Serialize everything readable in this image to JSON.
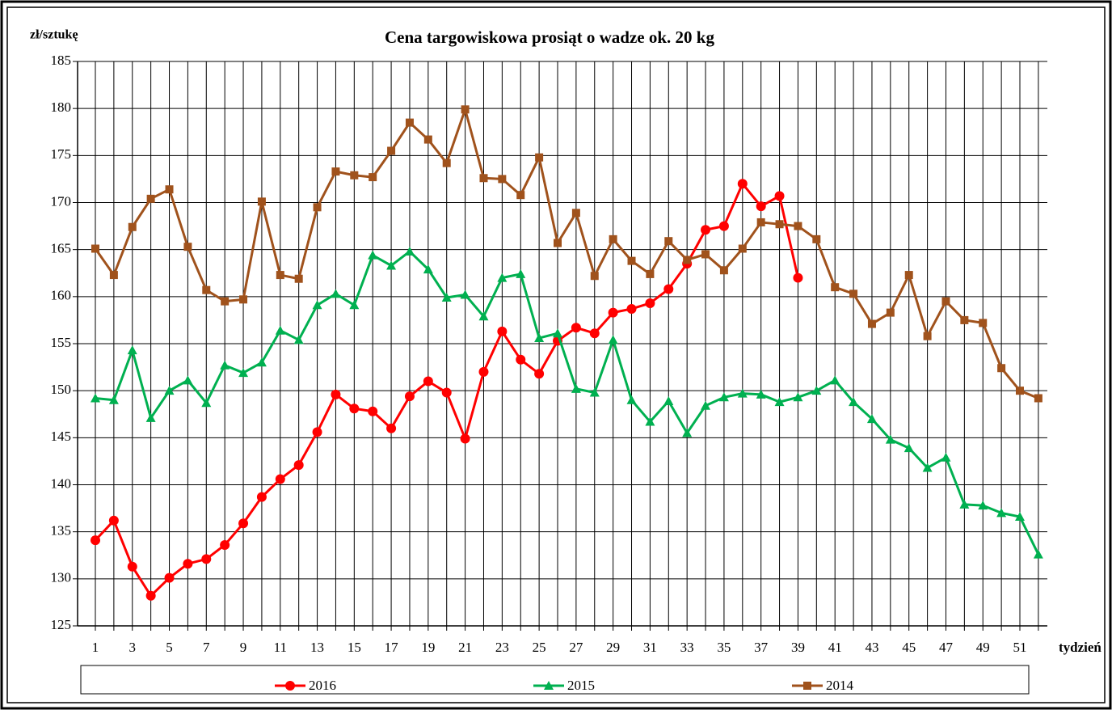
{
  "chart_data": {
    "type": "line",
    "title": "Cena targowiskowa prosiąt o wadze ok. 20 kg",
    "y_label": "zł/sztukę",
    "x_label": "tydzień",
    "categories": [
      1,
      null,
      3,
      null,
      5,
      null,
      7,
      null,
      9,
      null,
      11,
      null,
      13,
      null,
      15,
      null,
      17,
      null,
      19,
      null,
      21,
      null,
      23,
      null,
      25,
      null,
      27,
      null,
      29,
      null,
      31,
      null,
      33,
      null,
      35,
      null,
      37,
      null,
      39,
      null,
      41,
      null,
      43,
      null,
      45,
      null,
      47,
      null,
      49,
      null,
      51,
      null
    ],
    "ylim": [
      125,
      185
    ],
    "yticks": [
      125,
      130,
      135,
      140,
      145,
      150,
      155,
      160,
      165,
      170,
      175,
      180,
      185
    ],
    "grid": true,
    "legend": "bottom",
    "series": [
      {
        "name": "2016",
        "color": "#ff0000",
        "marker": "circle",
        "values": [
          134.1,
          136.2,
          131.3,
          128.2,
          130.1,
          131.6,
          132.1,
          133.6,
          135.9,
          138.7,
          140.6,
          142.1,
          145.6,
          149.6,
          148.1,
          147.8,
          146.0,
          149.4,
          151.0,
          149.8,
          144.9,
          152.0,
          156.3,
          153.3,
          151.8,
          155.3,
          156.7,
          156.1,
          158.3,
          158.7,
          159.3,
          160.8,
          163.5,
          167.1,
          167.5,
          172.0,
          169.6,
          170.7,
          162.0,
          null,
          null,
          null,
          null,
          null,
          null,
          null,
          null,
          null,
          null,
          null,
          null,
          null
        ]
      },
      {
        "name": "2015",
        "color": "#00b050",
        "marker": "triangle",
        "values": [
          149.2,
          149.0,
          154.3,
          147.1,
          150.0,
          151.1,
          148.7,
          152.7,
          151.9,
          153.0,
          156.4,
          155.4,
          159.1,
          160.3,
          159.1,
          164.4,
          163.3,
          164.8,
          162.9,
          159.9,
          160.2,
          157.9,
          162.0,
          162.4,
          155.6,
          156.1,
          150.2,
          149.8,
          155.4,
          149.0,
          146.7,
          148.9,
          145.5,
          148.4,
          149.3,
          149.7,
          149.6,
          148.8,
          149.3,
          150.0,
          151.1,
          148.8,
          147.0,
          144.8,
          143.9,
          141.8,
          142.9,
          137.9,
          137.8,
          137.0,
          136.6,
          132.6
        ]
      },
      {
        "name": "2014",
        "color": "#a0521c",
        "marker": "square",
        "values": [
          165.1,
          162.3,
          167.4,
          170.4,
          171.4,
          165.3,
          160.7,
          159.5,
          159.7,
          170.1,
          162.3,
          161.9,
          169.5,
          173.3,
          172.9,
          172.7,
          175.5,
          178.5,
          176.7,
          174.2,
          179.9,
          172.6,
          172.5,
          170.8,
          174.8,
          165.7,
          168.9,
          162.2,
          166.1,
          163.8,
          162.4,
          165.9,
          163.9,
          164.5,
          162.8,
          165.1,
          167.9,
          167.7,
          167.5,
          166.1,
          161.0,
          160.3,
          157.1,
          158.3,
          162.3,
          155.8,
          159.5,
          157.5,
          157.2,
          152.4,
          150.0,
          149.2
        ]
      }
    ]
  }
}
